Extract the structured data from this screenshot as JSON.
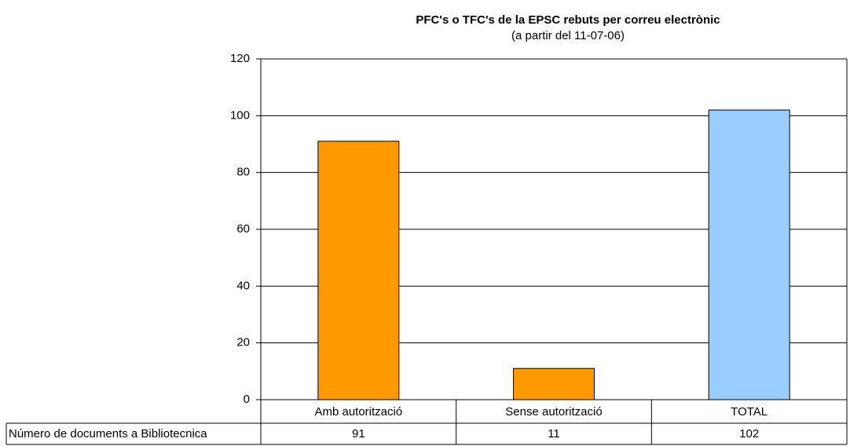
{
  "chart_data": {
    "type": "bar",
    "title": "PFC's o TFC's de la EPSC rebuts per correu electrònic",
    "subtitle": "(a partir del 11-07-06)",
    "categories": [
      "Amb autorització",
      "Sense autorització",
      "TOTAL"
    ],
    "series": [
      {
        "name": "Número de documents a Bibliotecnica",
        "values": [
          91,
          11,
          102
        ],
        "colors": [
          "#ff9900",
          "#ff9900",
          "#99ccff"
        ]
      }
    ],
    "ylim": [
      0,
      120
    ],
    "yticks": [
      0,
      20,
      40,
      60,
      80,
      100,
      120
    ],
    "grid": true,
    "data_table": true
  }
}
